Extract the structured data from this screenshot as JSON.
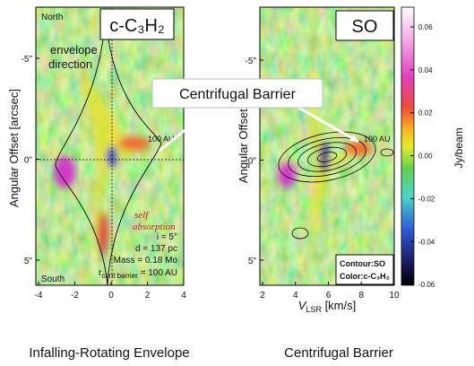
{
  "left_panel": {
    "molecule": "c-C₃H₂",
    "north": "North",
    "south": "South",
    "envelope": [
      "envelope",
      "direction"
    ],
    "scale": "100 AU",
    "self_absorption": [
      "self",
      "absorption"
    ],
    "params": [
      "i = 5°",
      "d = 137 pc",
      "Mass = 0.18 Mo"
    ],
    "radius": {
      "symbol": "r",
      "subscript": "cent barrier",
      "rest": " = 100 AU"
    },
    "y_label": "Angular Offset [arcsec]",
    "xticks": [
      "-4",
      "-2",
      "0",
      "2",
      "4"
    ],
    "yticks": [
      "-5\"",
      "0\"",
      "5\""
    ],
    "caption": "Infalling-Rotating Envelope"
  },
  "right_panel": {
    "molecule": "SO",
    "callout": "Centrifugal Barrier",
    "scale": "100 AU",
    "y_label": "Angular Offset [arc",
    "legend": {
      "contour": "Contour:SO",
      "color": "Color:c-C₃H₂"
    },
    "x_label": {
      "symbol": "V",
      "subscript": "LSR",
      "unit": " [km/s]"
    },
    "xticks": [
      "2",
      "4",
      "6",
      "8",
      "10"
    ],
    "yticks": [
      "-5\"",
      "0\"",
      "5\""
    ],
    "caption": "Centrifugal Barrier"
  },
  "colorbar": {
    "label": "Jy/beam",
    "ticks": [
      "0.06",
      "0.04",
      "0.02",
      "0.00",
      "-0.02",
      "-0.04",
      "-0.06"
    ]
  }
}
